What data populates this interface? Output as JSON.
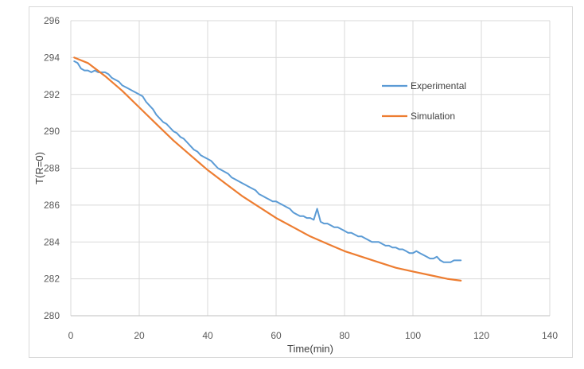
{
  "chart_data": {
    "type": "line",
    "title": "",
    "xlabel": "Time(min)",
    "ylabel": "T(R=0)",
    "xlim": [
      0,
      140
    ],
    "ylim": [
      280,
      296
    ],
    "xticks": [
      0,
      20,
      40,
      60,
      80,
      100,
      120,
      140
    ],
    "yticks": [
      280,
      282,
      284,
      286,
      288,
      290,
      292,
      294,
      296
    ],
    "grid": true,
    "legend_position": "right",
    "colors": {
      "experimental": "#5b9bd5",
      "simulation": "#ed7d31",
      "grid": "#d9d9d9",
      "axis": "#bfbfbf"
    },
    "series": [
      {
        "name": "Experimental",
        "x": [
          1,
          2,
          3,
          4,
          5,
          6,
          7,
          8,
          9,
          10,
          11,
          12,
          13,
          14,
          15,
          16,
          17,
          18,
          19,
          20,
          21,
          22,
          23,
          24,
          25,
          26,
          27,
          28,
          29,
          30,
          31,
          32,
          33,
          34,
          35,
          36,
          37,
          38,
          39,
          40,
          41,
          42,
          43,
          44,
          45,
          46,
          47,
          48,
          49,
          50,
          51,
          52,
          53,
          54,
          55,
          56,
          57,
          58,
          59,
          60,
          61,
          62,
          63,
          64,
          65,
          66,
          67,
          68,
          69,
          70,
          71,
          72,
          73,
          74,
          75,
          76,
          77,
          78,
          79,
          80,
          81,
          82,
          83,
          84,
          85,
          86,
          87,
          88,
          89,
          90,
          91,
          92,
          93,
          94,
          95,
          96,
          97,
          98,
          99,
          100,
          101,
          102,
          103,
          104,
          105,
          106,
          107,
          108,
          109,
          110,
          111,
          112,
          113,
          114
        ],
        "values": [
          293.8,
          293.7,
          293.4,
          293.3,
          293.3,
          293.2,
          293.3,
          293.2,
          293.2,
          293.2,
          293.1,
          292.9,
          292.8,
          292.7,
          292.5,
          292.4,
          292.3,
          292.2,
          292.1,
          292.0,
          291.9,
          291.6,
          291.4,
          291.2,
          290.9,
          290.7,
          290.5,
          290.4,
          290.2,
          290.0,
          289.9,
          289.7,
          289.6,
          289.4,
          289.2,
          289.0,
          288.9,
          288.7,
          288.6,
          288.5,
          288.4,
          288.2,
          288.0,
          287.9,
          287.8,
          287.7,
          287.5,
          287.4,
          287.3,
          287.2,
          287.1,
          287.0,
          286.9,
          286.8,
          286.6,
          286.5,
          286.4,
          286.3,
          286.2,
          286.2,
          286.1,
          286.0,
          285.9,
          285.8,
          285.6,
          285.5,
          285.4,
          285.4,
          285.3,
          285.3,
          285.2,
          285.8,
          285.1,
          285.0,
          285.0,
          284.9,
          284.8,
          284.8,
          284.7,
          284.6,
          284.5,
          284.5,
          284.4,
          284.3,
          284.3,
          284.2,
          284.1,
          284.0,
          284.0,
          284.0,
          283.9,
          283.8,
          283.8,
          283.7,
          283.7,
          283.6,
          283.6,
          283.5,
          283.4,
          283.4,
          283.5,
          283.4,
          283.3,
          283.2,
          283.1,
          283.1,
          283.2,
          283.0,
          282.9,
          282.9,
          282.9,
          283.0,
          283.0,
          283.0
        ]
      },
      {
        "name": "Simulation",
        "x": [
          1,
          5,
          10,
          15,
          20,
          25,
          30,
          35,
          40,
          45,
          50,
          55,
          60,
          65,
          70,
          75,
          80,
          85,
          90,
          95,
          100,
          105,
          110,
          114
        ],
        "values": [
          294.0,
          293.7,
          293.0,
          292.2,
          291.3,
          290.4,
          289.5,
          288.7,
          287.9,
          287.2,
          286.5,
          285.9,
          285.3,
          284.8,
          284.3,
          283.9,
          283.5,
          283.2,
          282.9,
          282.6,
          282.4,
          282.2,
          282.0,
          281.9
        ]
      }
    ]
  }
}
